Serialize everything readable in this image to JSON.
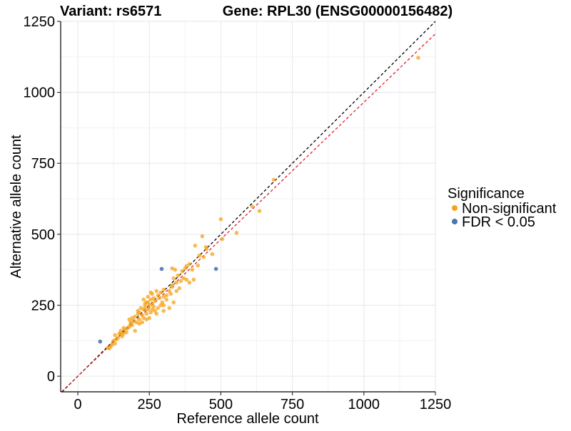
{
  "chart_data": {
    "type": "scatter",
    "title_left": "Variant: rs6571",
    "title_right": "Gene: RPL30 (ENSG00000156482)",
    "xlabel": "Reference allele count",
    "ylabel": "Alternative allele count",
    "xlim": [
      -60,
      1250
    ],
    "ylim": [
      -55,
      1250
    ],
    "x_ticks": [
      0,
      250,
      500,
      750,
      1000,
      1250
    ],
    "y_ticks": [
      0,
      250,
      500,
      750,
      1000,
      1250
    ],
    "grid": true,
    "legend": {
      "title": "Significance",
      "placement": "right",
      "entries": [
        {
          "label": "Non-significant",
          "color": "#f5a31a"
        },
        {
          "label": "FDR < 0.05",
          "color": "#4a77ad"
        }
      ]
    },
    "reference_lines": [
      {
        "name": "identity",
        "style": "dashed",
        "color": "#000000",
        "slope": 1.0,
        "intercept": 0
      },
      {
        "name": "fit",
        "style": "dashed",
        "color": "#e0202a",
        "slope": 0.965,
        "intercept": 0
      }
    ],
    "series": [
      {
        "name": "Non-significant",
        "color": "#f5a31a",
        "points": [
          [
            1190,
            1122
          ],
          [
            685,
            692
          ],
          [
            610,
            598
          ],
          [
            635,
            582
          ],
          [
            500,
            553
          ],
          [
            555,
            505
          ],
          [
            505,
            483
          ],
          [
            435,
            493
          ],
          [
            410,
            460
          ],
          [
            448,
            455
          ],
          [
            425,
            425
          ],
          [
            450,
            448
          ],
          [
            470,
            430
          ],
          [
            390,
            395
          ],
          [
            380,
            388
          ],
          [
            400,
            375
          ],
          [
            420,
            390
          ],
          [
            330,
            380
          ],
          [
            340,
            375
          ],
          [
            365,
            370
          ],
          [
            350,
            355
          ],
          [
            370,
            345
          ],
          [
            390,
            330
          ],
          [
            380,
            340
          ],
          [
            355,
            310
          ],
          [
            330,
            320
          ],
          [
            320,
            300
          ],
          [
            300,
            305
          ],
          [
            290,
            295
          ],
          [
            310,
            285
          ],
          [
            275,
            300
          ],
          [
            285,
            275
          ],
          [
            260,
            290
          ],
          [
            245,
            280
          ],
          [
            255,
            270
          ],
          [
            270,
            265
          ],
          [
            240,
            260
          ],
          [
            250,
            250
          ],
          [
            265,
            245
          ],
          [
            280,
            240
          ],
          [
            290,
            250
          ],
          [
            300,
            250
          ],
          [
            235,
            245
          ],
          [
            230,
            235
          ],
          [
            220,
            240
          ],
          [
            245,
            235
          ],
          [
            255,
            225
          ],
          [
            240,
            220
          ],
          [
            225,
            215
          ],
          [
            210,
            220
          ],
          [
            200,
            210
          ],
          [
            215,
            200
          ],
          [
            230,
            205
          ],
          [
            195,
            195
          ],
          [
            205,
            190
          ],
          [
            185,
            190
          ],
          [
            190,
            180
          ],
          [
            215,
            185
          ],
          [
            180,
            175
          ],
          [
            175,
            170
          ],
          [
            165,
            165
          ],
          [
            160,
            170
          ],
          [
            170,
            155
          ],
          [
            150,
            150
          ],
          [
            155,
            140
          ],
          [
            140,
            135
          ],
          [
            145,
            150
          ],
          [
            135,
            130
          ],
          [
            125,
            125
          ],
          [
            130,
            115
          ],
          [
            120,
            112
          ],
          [
            115,
            105
          ],
          [
            105,
            100
          ],
          [
            110,
            98
          ],
          [
            260,
            235
          ],
          [
            270,
            230
          ],
          [
            295,
            260
          ],
          [
            310,
            270
          ],
          [
            325,
            290
          ],
          [
            345,
            330
          ],
          [
            335,
            345
          ],
          [
            360,
            335
          ],
          [
            300,
            230
          ],
          [
            320,
            240
          ],
          [
            335,
            260
          ],
          [
            250,
            205
          ],
          [
            275,
            220
          ],
          [
            200,
            160
          ],
          [
            225,
            190
          ],
          [
            190,
            205
          ],
          [
            180,
            200
          ],
          [
            210,
            230
          ],
          [
            185,
            185
          ],
          [
            235,
            255
          ],
          [
            280,
            285
          ],
          [
            300,
            280
          ],
          [
            265,
            275
          ],
          [
            245,
            260
          ],
          [
            330,
            315
          ],
          [
            345,
            300
          ],
          [
            215,
            225
          ],
          [
            160,
            150
          ],
          [
            150,
            160
          ],
          [
            130,
            145
          ],
          [
            240,
            200
          ],
          [
            260,
            255
          ],
          [
            230,
            270
          ],
          [
            255,
            295
          ],
          [
            405,
            340
          ],
          [
            440,
            420
          ],
          [
            375,
            380
          ]
        ]
      },
      {
        "name": "FDR < 0.05",
        "color": "#4a77ad",
        "points": [
          [
            78,
            122
          ],
          [
            293,
            378
          ],
          [
            483,
            378
          ]
        ]
      }
    ]
  }
}
